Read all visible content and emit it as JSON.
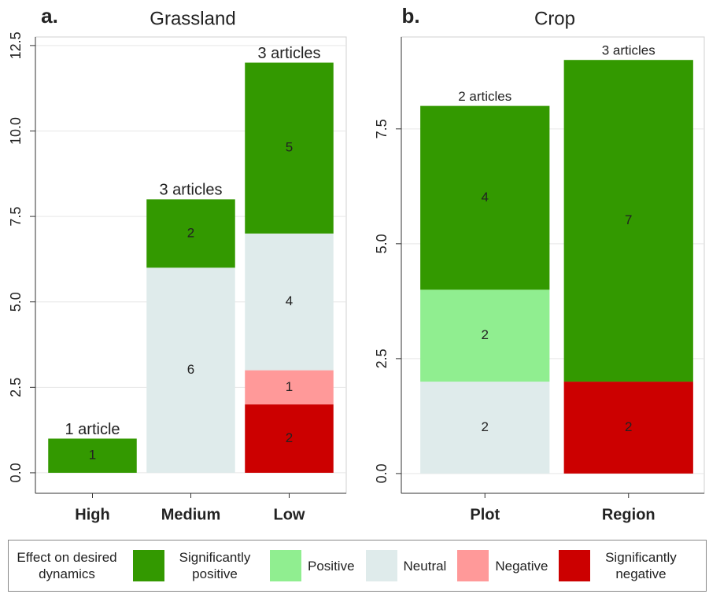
{
  "chart_data": [
    {
      "type": "stacked_bar",
      "panel_label": "a.",
      "title": "Grassland",
      "categories": [
        "High",
        "Medium",
        "Low"
      ],
      "series": [
        {
          "name": "Significantly negative",
          "color": "#cc0000",
          "values": [
            null,
            null,
            2
          ]
        },
        {
          "name": "Negative",
          "color": "#ff9999",
          "values": [
            null,
            null,
            1
          ]
        },
        {
          "name": "Neutral",
          "color": "#dfebeb",
          "values": [
            null,
            6,
            4
          ]
        },
        {
          "name": "Positive",
          "color": "#90ee90",
          "values": [
            null,
            null,
            null
          ]
        },
        {
          "name": "Significantly positive",
          "color": "#339900",
          "values": [
            1,
            2,
            5
          ]
        }
      ],
      "annotations": [
        "1 article",
        "3 articles",
        "3 articles"
      ],
      "ylim": [
        -0.6,
        12.75
      ],
      "yticks": [
        {
          "value": 0,
          "label": "0.0"
        },
        {
          "value": 2.5,
          "label": "2.5"
        },
        {
          "value": 5,
          "label": "5.0"
        },
        {
          "value": 7.5,
          "label": "7.5"
        },
        {
          "value": 10,
          "label": "10.0"
        },
        {
          "value": 12.5,
          "label": "12.5"
        }
      ],
      "grid": true,
      "legend_title": "Effect on desired dynamics"
    },
    {
      "type": "stacked_bar",
      "panel_label": "b.",
      "title": "Crop",
      "categories": [
        "Plot",
        "Region"
      ],
      "series": [
        {
          "name": "Significantly negative",
          "color": "#cc0000",
          "values": [
            null,
            2
          ]
        },
        {
          "name": "Negative",
          "color": "#ff9999",
          "values": [
            null,
            null
          ]
        },
        {
          "name": "Neutral",
          "color": "#dfebeb",
          "values": [
            2,
            null
          ]
        },
        {
          "name": "Positive",
          "color": "#90ee90",
          "values": [
            2,
            null
          ]
        },
        {
          "name": "Significantly positive",
          "color": "#339900",
          "values": [
            4,
            7
          ]
        }
      ],
      "annotations": [
        "2 articles",
        "3 articles"
      ],
      "ylim": [
        -0.43,
        9.5
      ],
      "yticks": [
        {
          "value": 0,
          "label": "0.0"
        },
        {
          "value": 2.5,
          "label": "2.5"
        },
        {
          "value": 5,
          "label": "5.0"
        },
        {
          "value": 7.5,
          "label": "7.5"
        }
      ],
      "grid": true
    }
  ]
}
